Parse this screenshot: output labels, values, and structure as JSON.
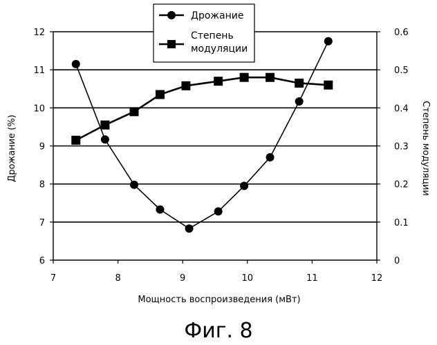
{
  "caption": "Фиг. 8",
  "chart_data": {
    "type": "line",
    "xlabel": "Мощность воспроизведения (мВт)",
    "xlim": [
      7,
      12
    ],
    "x_ticks": [
      "7",
      "8",
      "9",
      "10",
      "11",
      "12"
    ],
    "ylabel_left": "Дрожание (%)",
    "ylim_left": [
      6,
      12
    ],
    "y_ticks_left": [
      "6",
      "7",
      "8",
      "9",
      "10",
      "11",
      "12"
    ],
    "ylabel_right": "Степень модуляции",
    "ylim_right": [
      0,
      0.6
    ],
    "y_ticks_right": [
      "0",
      "0.1",
      "0.2",
      "0.3",
      "0.4",
      "0.5",
      "0.6"
    ],
    "grid": "horizontal",
    "legend_position": "top-center",
    "series": [
      {
        "name": "Дрожание",
        "axis": "left",
        "marker": "circle",
        "color": "#000000",
        "x": [
          7.35,
          7.8,
          8.25,
          8.65,
          9.1,
          9.55,
          9.95,
          10.35,
          10.8,
          11.25
        ],
        "y": [
          11.15,
          9.17,
          7.98,
          7.33,
          6.83,
          7.28,
          7.95,
          8.7,
          10.17,
          11.75
        ]
      },
      {
        "name": "Степень модуляции",
        "axis": "right",
        "marker": "square",
        "color": "#000000",
        "x": [
          7.35,
          7.8,
          8.25,
          8.65,
          9.05,
          9.55,
          9.95,
          10.35,
          10.8,
          11.25
        ],
        "y": [
          0.315,
          0.355,
          0.39,
          0.435,
          0.458,
          0.47,
          0.48,
          0.48,
          0.465,
          0.46
        ]
      }
    ]
  }
}
